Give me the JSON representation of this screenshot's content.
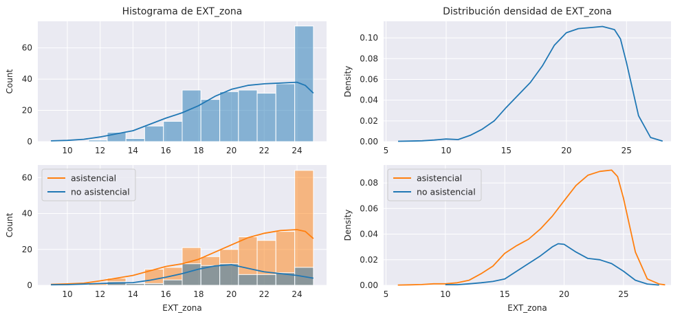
{
  "chart_data": [
    {
      "id": "p1",
      "type": "bar",
      "title": "Histograma de EXT_zona",
      "xlabel": "",
      "ylabel": "Count",
      "xlim": [
        8.2,
        25.8
      ],
      "ylim": [
        0,
        77
      ],
      "xticks": [
        10,
        12,
        14,
        16,
        18,
        20,
        22,
        24
      ],
      "yticks": [
        0,
        20,
        40,
        60
      ],
      "bin_edges": [
        9,
        10.14,
        11.29,
        12.43,
        13.57,
        14.71,
        15.86,
        17,
        18.14,
        19.29,
        20.43,
        21.57,
        22.71,
        23.86,
        25
      ],
      "series": [
        {
          "name": "",
          "color": "#1f77b4",
          "values": [
            0,
            0,
            1,
            6,
            2,
            10,
            13,
            33,
            27,
            32,
            33,
            31,
            37,
            74
          ]
        }
      ],
      "kde": [
        {
          "name": "",
          "color": "#1f77b4",
          "x": [
            9,
            10,
            11,
            12,
            13,
            14,
            15,
            16,
            17,
            18,
            19,
            20,
            21,
            22,
            23,
            24,
            24.5,
            25
          ],
          "y": [
            0.5,
            0.8,
            1.5,
            3,
            5,
            7,
            11,
            15,
            18.5,
            23,
            29,
            33.5,
            36,
            37,
            37.5,
            38,
            36,
            31
          ]
        }
      ],
      "legend": null
    },
    {
      "id": "p2",
      "type": "line",
      "title": "Distribución densidad de EXT_zona",
      "xlabel": "",
      "ylabel": "Density",
      "xlim": [
        4.8,
        28.7
      ],
      "ylim": [
        0,
        0.116
      ],
      "xticks": [
        5,
        10,
        15,
        20,
        25
      ],
      "xtick_labels": [
        "5",
        "10",
        "15",
        "20",
        "25"
      ],
      "yticks": [
        0,
        0.02,
        0.04,
        0.06,
        0.08,
        0.1
      ],
      "ytick_labels": [
        "0.00",
        "0.02",
        "0.04",
        "0.06",
        "0.08",
        "0.10"
      ],
      "series": [
        {
          "name": "",
          "color": "#1f77b4",
          "x": [
            6,
            7,
            8,
            9,
            10,
            11,
            12,
            13,
            14,
            15,
            16,
            17,
            18,
            19,
            20,
            21,
            22,
            23,
            24,
            24.5,
            25,
            26,
            27,
            28
          ],
          "y": [
            0.0003,
            0.0005,
            0.0008,
            0.0015,
            0.0025,
            0.002,
            0.006,
            0.012,
            0.02,
            0.033,
            0.045,
            0.057,
            0.073,
            0.093,
            0.105,
            0.109,
            0.11,
            0.111,
            0.108,
            0.099,
            0.076,
            0.025,
            0.004,
            0.0005
          ]
        }
      ],
      "legend": null
    },
    {
      "id": "p3",
      "type": "bar",
      "title": "",
      "xlabel": "EXT_zona",
      "ylabel": "Count",
      "xlim": [
        8.2,
        25.8
      ],
      "ylim": [
        0,
        67
      ],
      "xticks": [
        10,
        12,
        14,
        16,
        18,
        20,
        22,
        24
      ],
      "yticks": [
        0,
        20,
        40,
        60
      ],
      "bin_edges": [
        9,
        10.14,
        11.29,
        12.43,
        13.57,
        14.71,
        15.86,
        17,
        18.14,
        19.29,
        20.43,
        21.57,
        22.71,
        23.86,
        25
      ],
      "series": [
        {
          "name": "asistencial",
          "color": "#ff7f0e",
          "values": [
            0,
            0,
            1,
            4,
            1,
            9,
            10,
            21,
            16,
            20,
            27,
            25,
            30,
            64
          ]
        },
        {
          "name": "no asistencial",
          "color": "#1f77b4",
          "values": [
            0,
            0,
            0,
            2,
            1,
            1,
            3,
            12,
            11,
            12,
            6,
            6,
            7,
            10
          ]
        }
      ],
      "kde": [
        {
          "name": "asistencial",
          "color": "#ff7f0e",
          "x": [
            9,
            10,
            11,
            12,
            13,
            14,
            15,
            16,
            17,
            18,
            19,
            20,
            21,
            22,
            23,
            24,
            24.5,
            25
          ],
          "y": [
            0.5,
            0.8,
            1.2,
            2.5,
            4,
            5.5,
            8,
            10.5,
            12,
            14.5,
            18.5,
            22.5,
            26.5,
            29,
            30.5,
            31,
            30,
            26
          ]
        },
        {
          "name": "no asistencial",
          "color": "#1f77b4",
          "x": [
            9,
            10,
            11,
            12,
            13,
            14,
            15,
            16,
            17,
            18,
            19,
            20,
            21,
            22,
            23,
            24,
            25
          ],
          "y": [
            0.3,
            0.4,
            0.7,
            1,
            1.3,
            1.5,
            2.8,
            4.5,
            6.5,
            9,
            10.8,
            11.5,
            9.5,
            7.5,
            6.5,
            5.5,
            4
          ]
        }
      ],
      "legend": {
        "position": "upper-left",
        "entries": [
          "asistencial",
          "no asistencial"
        ]
      }
    },
    {
      "id": "p4",
      "type": "line",
      "title": "",
      "xlabel": "EXT_zona",
      "ylabel": "Density",
      "xlim": [
        4.8,
        29
      ],
      "ylim": [
        0,
        0.094
      ],
      "xticks": [
        5,
        10,
        15,
        20,
        25
      ],
      "xtick_labels": [
        "5",
        "10",
        "15",
        "20",
        "25"
      ],
      "yticks": [
        0,
        0.02,
        0.04,
        0.06,
        0.08
      ],
      "ytick_labels": [
        "0.00",
        "0.02",
        "0.04",
        "0.06",
        "0.08"
      ],
      "series": [
        {
          "name": "asistencial",
          "color": "#ff7f0e",
          "x": [
            6,
            7,
            8,
            9,
            10,
            11,
            12,
            13,
            14,
            15,
            16,
            17,
            18,
            19,
            20,
            21,
            22,
            23,
            24,
            24.5,
            25,
            26,
            27,
            28,
            28.5
          ],
          "y": [
            0.0002,
            0.0004,
            0.0006,
            0.0012,
            0.0012,
            0.002,
            0.004,
            0.009,
            0.015,
            0.025,
            0.031,
            0.036,
            0.044,
            0.054,
            0.066,
            0.078,
            0.086,
            0.089,
            0.09,
            0.085,
            0.068,
            0.026,
            0.005,
            0.001,
            0.0004
          ]
        },
        {
          "name": "no asistencial",
          "color": "#1f77b4",
          "x": [
            10,
            11,
            12,
            13,
            14,
            15,
            16,
            17,
            18,
            19,
            19.5,
            20,
            21,
            22,
            23,
            24,
            25,
            26,
            27,
            28
          ],
          "y": [
            0.0005,
            0.0005,
            0.0012,
            0.002,
            0.003,
            0.005,
            0.011,
            0.017,
            0.023,
            0.03,
            0.0325,
            0.032,
            0.026,
            0.021,
            0.02,
            0.017,
            0.011,
            0.004,
            0.001,
            0.0002
          ]
        }
      ],
      "legend": {
        "position": "upper-left",
        "entries": [
          "asistencial",
          "no asistencial"
        ]
      }
    }
  ]
}
